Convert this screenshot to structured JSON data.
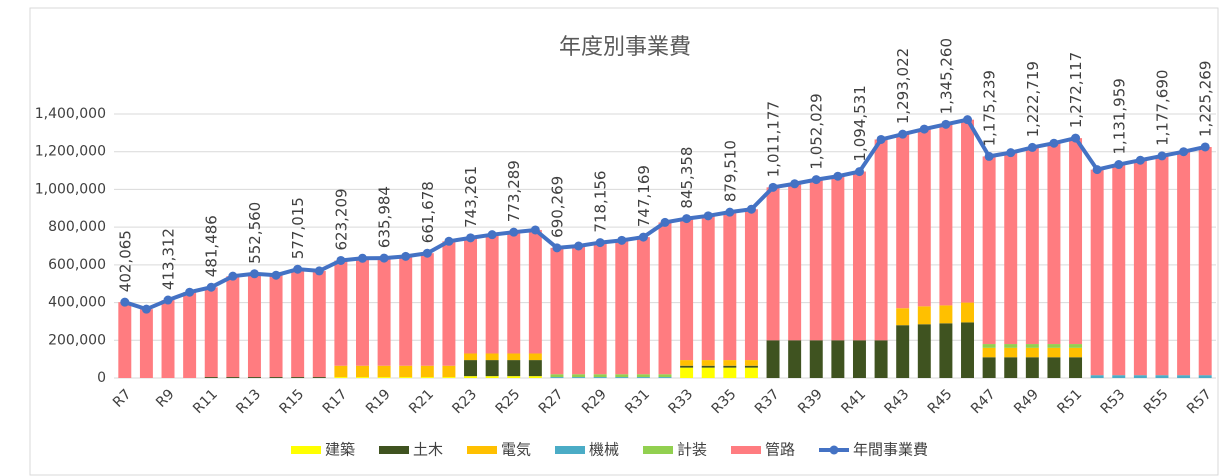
{
  "chart_data": {
    "type": "bar",
    "stacked": true,
    "title": "年度別事業費",
    "categories": [
      "R7",
      null,
      "R9",
      null,
      "R11",
      null,
      "R13",
      null,
      "R15",
      null,
      "R17",
      null,
      "R19",
      null,
      "R21",
      null,
      "R23",
      null,
      "R25",
      null,
      "R27",
      null,
      "R29",
      null,
      "R31",
      null,
      "R33",
      null,
      "R35",
      null,
      "R37",
      null,
      "R39",
      null,
      "R41",
      null,
      "R43",
      null,
      "R45",
      null,
      "R47",
      null,
      "R49",
      null,
      "R51",
      null,
      "R53",
      null,
      "R55",
      null,
      "R57"
    ],
    "series": [
      {
        "name": "建築",
        "color": "#ffff00",
        "values": [
          0,
          0,
          0,
          0,
          0,
          0,
          0,
          0,
          0,
          0,
          5000,
          5000,
          5000,
          5000,
          5000,
          5000,
          10000,
          10000,
          10000,
          10000,
          0,
          0,
          0,
          0,
          0,
          0,
          55000,
          55000,
          55000,
          55000,
          0,
          0,
          0,
          0,
          0,
          0,
          0,
          0,
          0,
          0,
          0,
          0,
          0,
          0,
          0,
          0,
          0,
          0,
          0,
          0,
          0
        ]
      },
      {
        "name": "土木",
        "color": "#3f5320",
        "values": [
          0,
          0,
          0,
          0,
          5000,
          5000,
          5000,
          5000,
          5000,
          5000,
          0,
          0,
          0,
          0,
          0,
          0,
          85000,
          85000,
          85000,
          85000,
          0,
          0,
          0,
          0,
          0,
          0,
          10000,
          10000,
          10000,
          10000,
          200000,
          200000,
          200000,
          200000,
          200000,
          200000,
          280000,
          285000,
          290000,
          295000,
          110000,
          110000,
          110000,
          110000,
          110000,
          0,
          0,
          0,
          0,
          0,
          0
        ]
      },
      {
        "name": "電気",
        "color": "#ffc000",
        "values": [
          0,
          0,
          0,
          0,
          0,
          0,
          0,
          0,
          0,
          0,
          60000,
          60000,
          60000,
          60000,
          60000,
          60000,
          35000,
          35000,
          35000,
          35000,
          0,
          0,
          0,
          0,
          0,
          0,
          30000,
          30000,
          30000,
          30000,
          0,
          0,
          0,
          0,
          0,
          0,
          90000,
          95000,
          95000,
          105000,
          50000,
          50000,
          50000,
          50000,
          50000,
          0,
          0,
          0,
          0,
          0,
          0
        ]
      },
      {
        "name": "機械",
        "color": "#4bacc6",
        "values": [
          0,
          0,
          0,
          0,
          0,
          0,
          0,
          0,
          0,
          0,
          0,
          0,
          0,
          0,
          0,
          0,
          0,
          0,
          0,
          0,
          5000,
          5000,
          5000,
          5000,
          5000,
          5000,
          0,
          0,
          0,
          0,
          0,
          0,
          0,
          0,
          0,
          0,
          0,
          0,
          0,
          0,
          0,
          0,
          0,
          0,
          0,
          15000,
          15000,
          15000,
          15000,
          15000,
          15000
        ]
      },
      {
        "name": "計装",
        "color": "#92d050",
        "values": [
          0,
          0,
          0,
          0,
          0,
          0,
          0,
          0,
          0,
          0,
          0,
          0,
          0,
          0,
          0,
          0,
          0,
          0,
          0,
          0,
          15000,
          15000,
          15000,
          15000,
          15000,
          15000,
          0,
          0,
          0,
          0,
          0,
          0,
          0,
          0,
          0,
          0,
          0,
          0,
          0,
          0,
          20000,
          20000,
          20000,
          20000,
          20000,
          0,
          0,
          0,
          0,
          0,
          0
        ]
      },
      {
        "name": "管路",
        "color": "#ff7c80",
        "values": [
          402000,
          365000,
          413000,
          455000,
          476000,
          535000,
          548000,
          540000,
          572000,
          563000,
          558000,
          570000,
          571000,
          580000,
          597000,
          660000,
          613000,
          630000,
          643000,
          655000,
          670000,
          680000,
          698000,
          710000,
          727000,
          805000,
          750000,
          765000,
          785000,
          800000,
          811000,
          830000,
          852000,
          870000,
          895000,
          1065000,
          923000,
          940000,
          960000,
          970000,
          995000,
          1015000,
          1043000,
          1065000,
          1092000,
          1090000,
          1117000,
          1140000,
          1163000,
          1185000,
          1210000
        ]
      },
      {
        "name": "年間事業費",
        "type": "line",
        "color": "#4472c4",
        "values": [
          402065,
          365000,
          413312,
          455000,
          481486,
          540000,
          552560,
          545000,
          577015,
          568000,
          623209,
          635000,
          635984,
          645000,
          661678,
          725000,
          743261,
          760000,
          773289,
          785000,
          690269,
          700000,
          718156,
          730000,
          747169,
          825000,
          845358,
          860000,
          879510,
          895000,
          1011177,
          1030000,
          1052029,
          1070000,
          1094531,
          1265000,
          1293022,
          1320000,
          1345260,
          1370000,
          1175239,
          1195000,
          1222719,
          1245000,
          1272117,
          1105000,
          1131959,
          1155000,
          1177690,
          1200000,
          1225269
        ],
        "value_labels": [
          "402,065",
          null,
          "413,312",
          null,
          "481,486",
          null,
          "552,560",
          null,
          "577,015",
          null,
          "623,209",
          null,
          "635,984",
          null,
          "661,678",
          null,
          "743,261",
          null,
          "773,289",
          null,
          "690,269",
          null,
          "718,156",
          null,
          "747,169",
          null,
          "845,358",
          null,
          "879,510",
          null,
          "1,011,177",
          null,
          "1,052,029",
          null,
          "1,094,531",
          null,
          "1,293,022",
          null,
          "1,345,260",
          null,
          "1,175,239",
          null,
          "1,222,719",
          null,
          "1,272,117",
          null,
          "1,131,959",
          null,
          "1,177,690",
          null,
          "1,225,269"
        ]
      }
    ],
    "ylim": [
      0,
      1400000
    ],
    "yticks": [
      0,
      {
        "value": 200000,
        "label": "200,000"
      },
      {
        "value": 400000,
        "label": "400,000"
      },
      {
        "value": 600000,
        "label": "600,000"
      },
      {
        "value": 800000,
        "label": "800,000"
      },
      {
        "value": 1000000,
        "label": "1,000,000"
      },
      {
        "value": 1200000,
        "label": "1,200,000"
      },
      {
        "value": 1400000,
        "label": "1,400,000"
      }
    ],
    "grid": true,
    "legend": "bottom"
  }
}
